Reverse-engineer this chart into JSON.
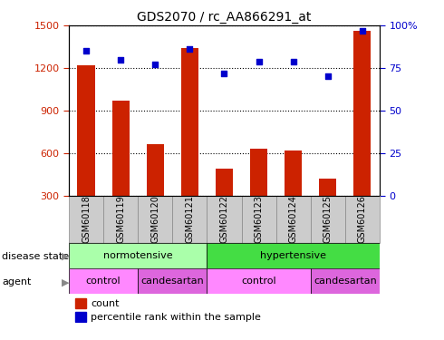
{
  "title": "GDS2070 / rc_AA866291_at",
  "samples": [
    "GSM60118",
    "GSM60119",
    "GSM60120",
    "GSM60121",
    "GSM60122",
    "GSM60123",
    "GSM60124",
    "GSM60125",
    "GSM60126"
  ],
  "counts": [
    1220,
    970,
    660,
    1340,
    490,
    630,
    620,
    420,
    1460
  ],
  "percentile": [
    85,
    80,
    77,
    86,
    72,
    79,
    79,
    70,
    97
  ],
  "ylim_left": [
    300,
    1500
  ],
  "ylim_right": [
    0,
    100
  ],
  "yticks_left": [
    300,
    600,
    900,
    1200,
    1500
  ],
  "yticks_right": [
    0,
    25,
    50,
    75,
    100
  ],
  "bar_color": "#cc2200",
  "dot_color": "#0000cc",
  "grid_color": "#000000",
  "normotensive_color": "#aaffaa",
  "hypertensive_color": "#44dd44",
  "control_color": "#ff88ff",
  "candesartan_color": "#dd66dd",
  "tick_label_color_left": "#cc2200",
  "tick_label_color_right": "#0000cc",
  "bar_width": 0.5,
  "xtick_bg_color": "#cccccc",
  "xtick_border_color": "#888888"
}
